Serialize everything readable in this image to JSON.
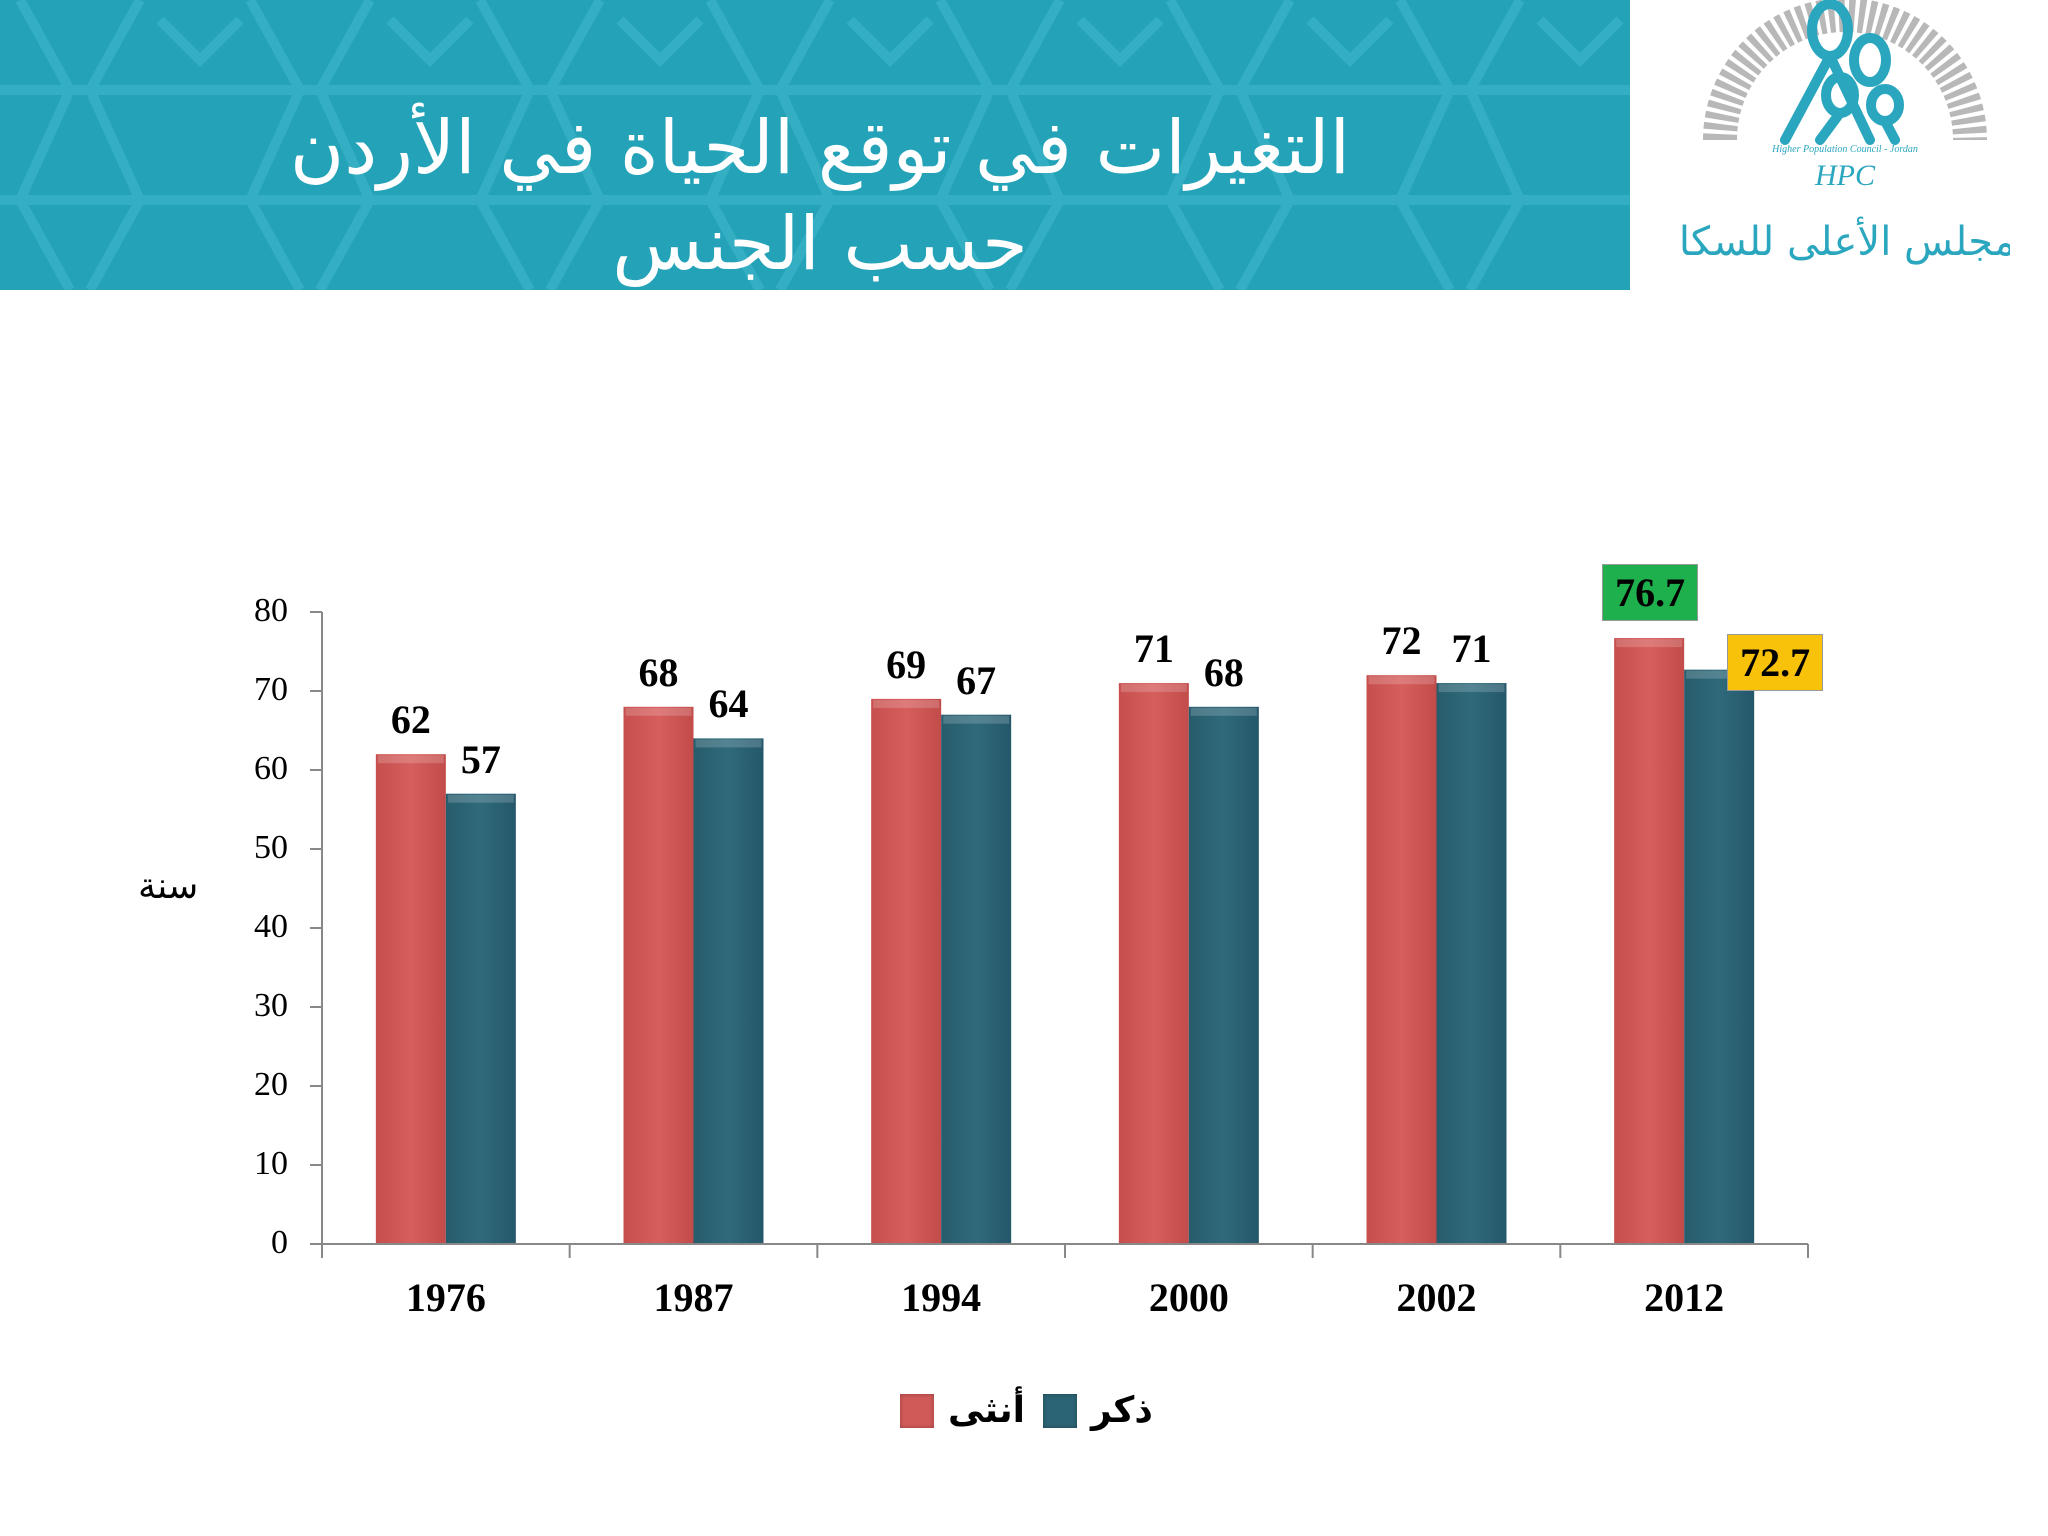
{
  "header": {
    "title_line1": "التغيرات في توقع الحياة في الأردن",
    "title_line2": "حسب الجنس",
    "banner_color": "#23a2b8"
  },
  "logo": {
    "english_text": "Higher Population Council - Jordan",
    "abbreviation": "HPC",
    "arabic_text": "المجلس الأعلى للسكان"
  },
  "chart_data": {
    "type": "bar",
    "title": "التغيرات في توقع الحياة في الأردن حسب الجنس",
    "xlabel": "",
    "ylabel": "سنة",
    "ylim": [
      0,
      80
    ],
    "yticks": [
      0,
      10,
      20,
      30,
      40,
      50,
      60,
      70,
      80
    ],
    "categories": [
      "1976",
      "1987",
      "1994",
      "2000",
      "2002",
      "2012"
    ],
    "series": [
      {
        "name": "أنثى",
        "color": "#d05a58",
        "values": [
          62,
          68,
          69,
          71,
          72,
          76.7
        ]
      },
      {
        "name": "ذكر",
        "color": "#2b6475",
        "values": [
          57,
          64,
          67,
          68,
          71,
          72.7
        ]
      }
    ],
    "highlights": [
      {
        "category": "2012",
        "series": "أنثى",
        "value": 76.7,
        "box_color": "#1fb04e"
      },
      {
        "category": "2012",
        "series": "ذكر",
        "value": 72.7,
        "box_color": "#f9c20a"
      }
    ],
    "grid": false,
    "legend_position": "bottom"
  },
  "legend": {
    "female_label": "أنثى",
    "male_label": "ذكر"
  }
}
